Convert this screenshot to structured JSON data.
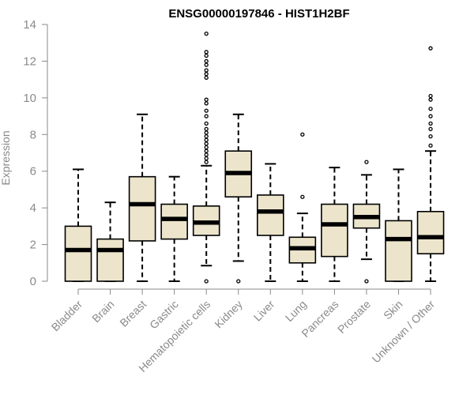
{
  "chart_data": {
    "type": "boxplot",
    "title": "ENSG00000197846 - HIST1H2BF",
    "xlabel": "",
    "ylabel": "Expression",
    "ylim": [
      0,
      14
    ],
    "yticks": [
      0,
      2,
      4,
      6,
      8,
      10,
      12,
      14
    ],
    "grid": false,
    "box_fill": "#ece5cc",
    "median_color": "#000000",
    "axis_color": "#8a8a8a",
    "categories": [
      "Bladder",
      "Brain",
      "Breast",
      "Gastric",
      "Hematopoietic cells",
      "Kidney",
      "Liver",
      "Lung",
      "Pancreas",
      "Prostate",
      "Skin",
      "Unknown / Other"
    ],
    "boxes": [
      {
        "category": "Bladder",
        "whisker_low": 0,
        "q1": 0,
        "median": 1.7,
        "q3": 3.0,
        "whisker_high": 6.1,
        "outliers": []
      },
      {
        "category": "Brain",
        "whisker_low": 0,
        "q1": 0,
        "median": 1.7,
        "q3": 2.3,
        "whisker_high": 4.3,
        "outliers": []
      },
      {
        "category": "Breast",
        "whisker_low": 0,
        "q1": 2.2,
        "median": 4.2,
        "q3": 5.7,
        "whisker_high": 9.1,
        "outliers": []
      },
      {
        "category": "Gastric",
        "whisker_low": 0,
        "q1": 2.3,
        "median": 3.4,
        "q3": 4.2,
        "whisker_high": 5.7,
        "outliers": []
      },
      {
        "category": "Hematopoietic cells",
        "whisker_low": 0.85,
        "q1": 2.5,
        "median": 3.2,
        "q3": 4.1,
        "whisker_high": 6.3,
        "outliers": [
          0,
          6.5,
          6.7,
          6.9,
          7.1,
          7.3,
          7.5,
          7.7,
          7.9,
          8.1,
          8.3,
          8.6,
          9.0,
          9.3,
          9.7,
          9.9,
          11.1,
          11.3,
          11.5,
          11.8,
          12.0,
          12.3,
          12.5,
          13.5
        ]
      },
      {
        "category": "Kidney",
        "whisker_low": 1.1,
        "q1": 4.6,
        "median": 5.9,
        "q3": 7.1,
        "whisker_high": 9.1,
        "outliers": [
          0
        ]
      },
      {
        "category": "Liver",
        "whisker_low": 0,
        "q1": 2.5,
        "median": 3.8,
        "q3": 4.7,
        "whisker_high": 6.4,
        "outliers": []
      },
      {
        "category": "Lung",
        "whisker_low": 0,
        "q1": 1.0,
        "median": 1.8,
        "q3": 2.4,
        "whisker_high": 3.7,
        "outliers": [
          4.6,
          8.0
        ]
      },
      {
        "category": "Pancreas",
        "whisker_low": 0,
        "q1": 1.35,
        "median": 3.1,
        "q3": 4.2,
        "whisker_high": 6.2,
        "outliers": []
      },
      {
        "category": "Prostate",
        "whisker_low": 1.2,
        "q1": 2.9,
        "median": 3.5,
        "q3": 4.2,
        "whisker_high": 5.8,
        "outliers": [
          0,
          6.5
        ]
      },
      {
        "category": "Skin",
        "whisker_low": 0,
        "q1": 0,
        "median": 2.3,
        "q3": 3.3,
        "whisker_high": 6.1,
        "outliers": []
      },
      {
        "category": "Unknown / Other",
        "whisker_low": 0,
        "q1": 1.5,
        "median": 2.4,
        "q3": 3.8,
        "whisker_high": 7.1,
        "outliers": [
          7.4,
          7.9,
          8.3,
          8.6,
          9.0,
          9.4,
          9.9,
          10.1,
          12.7
        ]
      }
    ]
  }
}
